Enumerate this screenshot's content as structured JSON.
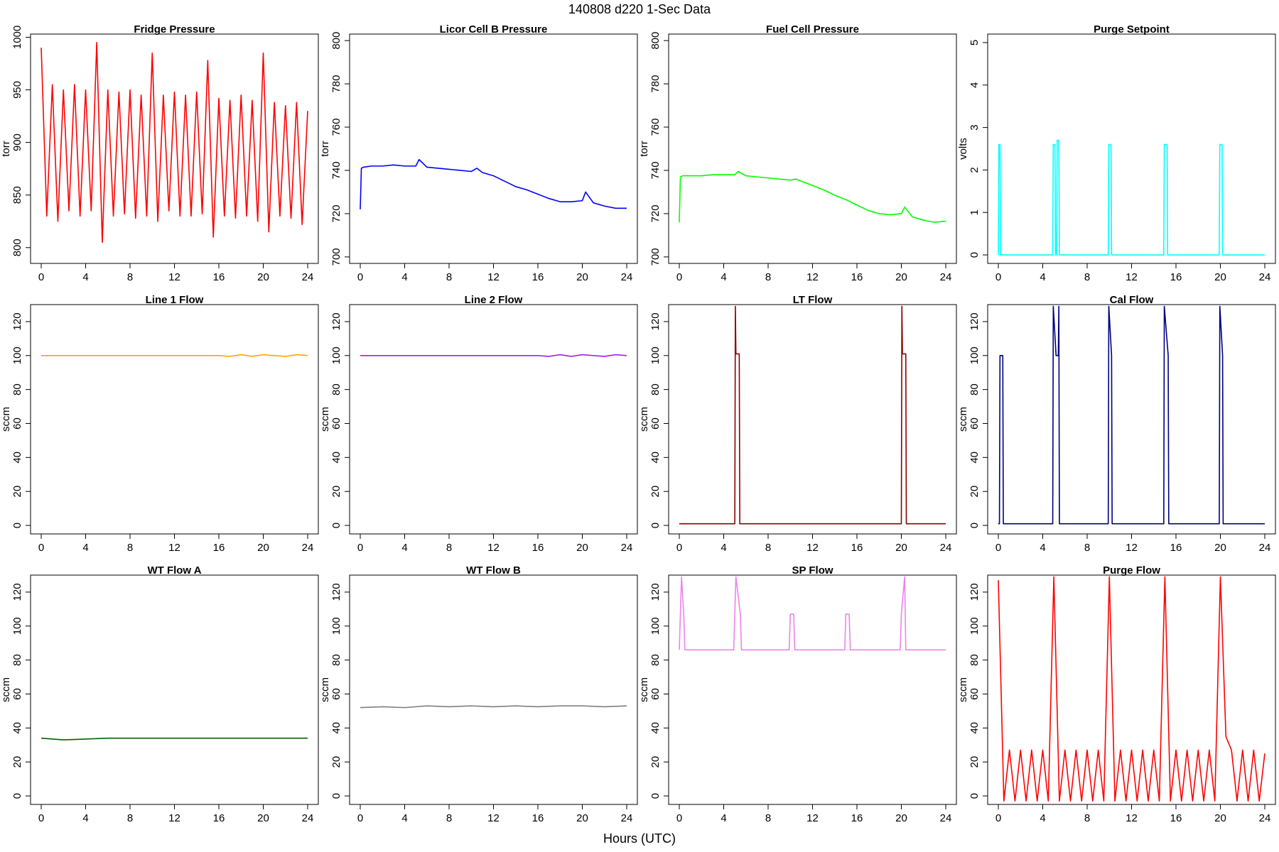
{
  "title": "140808   d220   1-Sec Data",
  "xlabel": "Hours (UTC)",
  "chart_data": [
    {
      "type": "line",
      "title": "Fridge Pressure",
      "ylabel": "torr",
      "color": "#ff0000",
      "x": [
        0,
        0.5,
        1,
        1.5,
        2,
        2.5,
        3,
        3.5,
        4,
        4.5,
        5,
        5.5,
        6,
        6.5,
        7,
        7.5,
        8,
        8.5,
        9,
        9.5,
        10,
        10.5,
        11,
        11.5,
        12,
        12.5,
        13,
        13.5,
        14,
        14.5,
        15,
        15.5,
        16,
        16.5,
        17,
        17.5,
        18,
        18.5,
        19,
        19.5,
        20,
        20.5,
        21,
        21.5,
        22,
        22.5,
        23,
        23.5,
        24
      ],
      "values": [
        990,
        830,
        955,
        825,
        950,
        835,
        955,
        830,
        950,
        835,
        995,
        805,
        950,
        830,
        948,
        832,
        950,
        828,
        945,
        830,
        985,
        825,
        945,
        835,
        948,
        830,
        945,
        830,
        948,
        832,
        978,
        810,
        942,
        830,
        940,
        828,
        945,
        830,
        940,
        825,
        985,
        815,
        938,
        830,
        935,
        828,
        938,
        822,
        930
      ],
      "xlim": [
        -0.96,
        24.96
      ],
      "xticks": [
        0,
        4,
        8,
        12,
        16,
        20,
        24
      ],
      "ylim": [
        785,
        1003
      ],
      "yticks": [
        800,
        850,
        900,
        950,
        1000
      ]
    },
    {
      "type": "line",
      "title": "Licor Cell B Pressure",
      "ylabel": "torr",
      "color": "#0000ff",
      "x": [
        0,
        0.1,
        0.3,
        1,
        2,
        3,
        4,
        5,
        5.3,
        6,
        7,
        8,
        9,
        10,
        10.5,
        11,
        12,
        13,
        14,
        15,
        16,
        17,
        18,
        19,
        20,
        20.3,
        21,
        22,
        23,
        24
      ],
      "values": [
        722,
        741,
        741.5,
        742,
        742,
        742.5,
        742,
        742,
        745,
        741.5,
        741,
        740.5,
        740,
        739.5,
        741,
        739,
        737.5,
        735,
        732.5,
        731,
        729,
        727,
        725.5,
        725.5,
        726,
        730,
        725,
        723.5,
        722.5,
        722.5
      ],
      "xlim": [
        -0.96,
        24.96
      ],
      "xticks": [
        0,
        4,
        8,
        12,
        16,
        20,
        24
      ],
      "ylim": [
        697,
        803
      ],
      "yticks": [
        700,
        720,
        740,
        760,
        780,
        800
      ]
    },
    {
      "type": "line",
      "title": "Fuel Cell Pressure",
      "ylabel": "torr",
      "color": "#00ff00",
      "x": [
        0,
        0.1,
        0.3,
        1,
        2,
        3,
        4,
        5,
        5.3,
        6,
        7,
        8,
        9,
        10,
        10.5,
        11,
        12,
        13,
        14,
        15,
        16,
        17,
        18,
        19,
        20,
        20.3,
        21,
        22,
        23,
        24
      ],
      "values": [
        716,
        737,
        737.5,
        737.5,
        737.5,
        738,
        738,
        738,
        739.5,
        737.5,
        737,
        736.5,
        736,
        735.5,
        736,
        735,
        733,
        731,
        728.5,
        726.5,
        724,
        721.5,
        720,
        719.5,
        720,
        723,
        718.5,
        717,
        716,
        716.5
      ],
      "xlim": [
        -0.96,
        24.96
      ],
      "xticks": [
        0,
        4,
        8,
        12,
        16,
        20,
        24
      ],
      "ylim": [
        697,
        803
      ],
      "yticks": [
        700,
        720,
        740,
        760,
        780,
        800
      ]
    },
    {
      "type": "line",
      "title": "Purge Setpoint",
      "ylabel": "volts",
      "color": "#00ffff",
      "x": [
        0,
        0.05,
        0.15,
        0.2,
        4.9,
        4.95,
        5.1,
        5.15,
        5.25,
        5.3,
        5.45,
        5.5,
        9.9,
        9.95,
        10.15,
        10.2,
        14.9,
        14.95,
        15.2,
        15.25,
        19.9,
        19.95,
        20.15,
        20.2,
        24
      ],
      "values": [
        0,
        2.6,
        2.6,
        0,
        0,
        2.6,
        2.6,
        0,
        0,
        2.7,
        2.7,
        0,
        0,
        2.6,
        2.6,
        0,
        0,
        2.6,
        2.6,
        0,
        0,
        2.6,
        2.6,
        0,
        0
      ],
      "xlim": [
        -0.96,
        24.96
      ],
      "xticks": [
        0,
        4,
        8,
        12,
        16,
        20,
        24
      ],
      "ylim": [
        -0.2,
        5.2
      ],
      "yticks": [
        0,
        1,
        2,
        3,
        4,
        5
      ]
    },
    {
      "type": "line",
      "title": "Line 1 Flow",
      "ylabel": "sccm",
      "color": "#ffa500",
      "x": [
        0,
        4,
        8,
        12,
        16,
        17,
        18,
        19,
        20,
        21,
        22,
        23,
        24
      ],
      "values": [
        100,
        100,
        100,
        100,
        100,
        99.5,
        100.5,
        99.5,
        100.5,
        100,
        99.5,
        100.5,
        100
      ],
      "xlim": [
        -0.96,
        24.96
      ],
      "xticks": [
        0,
        4,
        8,
        12,
        16,
        20,
        24
      ],
      "ylim": [
        -5,
        130
      ],
      "yticks": [
        0,
        20,
        40,
        60,
        80,
        100,
        120
      ]
    },
    {
      "type": "line",
      "title": "Line 2 Flow",
      "ylabel": "sccm",
      "color": "#a020f0",
      "x": [
        0,
        4,
        8,
        12,
        16,
        17,
        18,
        19,
        20,
        21,
        22,
        23,
        24
      ],
      "values": [
        100,
        100,
        100,
        100,
        100,
        99.5,
        100.5,
        99.5,
        100.5,
        100,
        99.5,
        100.5,
        100
      ],
      "xlim": [
        -0.96,
        24.96
      ],
      "xticks": [
        0,
        4,
        8,
        12,
        16,
        20,
        24
      ],
      "ylim": [
        -5,
        130
      ],
      "yticks": [
        0,
        20,
        40,
        60,
        80,
        100,
        120
      ]
    },
    {
      "type": "line",
      "title": "LT Flow",
      "ylabel": "sccm",
      "color": "#8b0000",
      "x": [
        0,
        5,
        5.05,
        5.1,
        5.4,
        5.45,
        20,
        20.05,
        20.1,
        20.4,
        20.45,
        24
      ],
      "values": [
        1,
        1,
        129,
        101,
        101,
        1,
        1,
        129,
        101,
        101,
        1,
        1
      ],
      "xlim": [
        -0.96,
        24.96
      ],
      "xticks": [
        0,
        4,
        8,
        12,
        16,
        20,
        24
      ],
      "ylim": [
        -5,
        130
      ],
      "yticks": [
        0,
        20,
        40,
        60,
        80,
        100,
        120
      ]
    },
    {
      "type": "line",
      "title": "Cal Flow",
      "ylabel": "sccm",
      "color": "#000080",
      "x": [
        0,
        0.1,
        0.15,
        0.4,
        0.45,
        4.9,
        4.95,
        5.2,
        5.4,
        5.45,
        5.5,
        9.9,
        9.95,
        10.2,
        10.25,
        14.9,
        14.95,
        15.3,
        15.35,
        19.9,
        19.95,
        20.2,
        20.25,
        24
      ],
      "values": [
        1,
        1,
        100,
        100,
        1,
        1,
        129,
        100,
        100,
        129,
        1,
        1,
        129,
        100,
        1,
        1,
        129,
        100,
        1,
        1,
        129,
        100,
        1,
        1
      ],
      "xlim": [
        -0.96,
        24.96
      ],
      "xticks": [
        0,
        4,
        8,
        12,
        16,
        20,
        24
      ],
      "ylim": [
        -5,
        130
      ],
      "yticks": [
        0,
        20,
        40,
        60,
        80,
        100,
        120
      ]
    },
    {
      "type": "line",
      "title": "WT Flow A",
      "ylabel": "sccm",
      "color": "#006400",
      "x": [
        0,
        2,
        4,
        6,
        8,
        10,
        12,
        14,
        16,
        18,
        20,
        22,
        24
      ],
      "values": [
        34,
        33,
        33.5,
        34,
        34,
        34,
        34,
        34,
        34,
        34,
        34,
        34,
        34
      ],
      "xlim": [
        -0.96,
        24.96
      ],
      "xticks": [
        0,
        4,
        8,
        12,
        16,
        20,
        24
      ],
      "ylim": [
        -5,
        130
      ],
      "yticks": [
        0,
        20,
        40,
        60,
        80,
        100,
        120
      ]
    },
    {
      "type": "line",
      "title": "WT Flow B",
      "ylabel": "sccm",
      "color": "#808080",
      "x": [
        0,
        2,
        4,
        6,
        8,
        10,
        12,
        14,
        16,
        18,
        20,
        22,
        24
      ],
      "values": [
        52,
        52.5,
        52,
        53,
        52.5,
        53,
        52.5,
        53,
        52.5,
        53,
        53,
        52.5,
        53
      ],
      "xlim": [
        -0.96,
        24.96
      ],
      "xticks": [
        0,
        4,
        8,
        12,
        16,
        20,
        24
      ],
      "ylim": [
        -5,
        130
      ],
      "yticks": [
        0,
        20,
        40,
        60,
        80,
        100,
        120
      ]
    },
    {
      "type": "line",
      "title": "SP Flow",
      "ylabel": "sccm",
      "color": "#ee82ee",
      "x": [
        0,
        0.1,
        0.2,
        0.4,
        0.5,
        4.9,
        5,
        5.1,
        5.5,
        5.6,
        9.9,
        10,
        10.3,
        10.4,
        14.9,
        15,
        15.3,
        15.4,
        19.9,
        20,
        20.3,
        20.4,
        22,
        24
      ],
      "values": [
        86,
        107,
        129,
        107,
        86,
        86,
        107,
        129,
        107,
        86,
        86,
        107,
        107,
        86,
        86,
        107,
        107,
        86,
        86,
        107,
        129,
        86,
        86,
        86
      ],
      "xlim": [
        -0.96,
        24.96
      ],
      "xticks": [
        0,
        4,
        8,
        12,
        16,
        20,
        24
      ],
      "ylim": [
        -5,
        130
      ],
      "yticks": [
        0,
        20,
        40,
        60,
        80,
        100,
        120
      ]
    },
    {
      "type": "line",
      "title": "Purge Flow",
      "ylabel": "sccm",
      "color": "#ff0000",
      "x": [
        0,
        0.5,
        1,
        1.5,
        2,
        2.5,
        3,
        3.5,
        4,
        4.5,
        5,
        5.5,
        6,
        6.5,
        7,
        7.5,
        8,
        8.5,
        9,
        9.5,
        10,
        10.5,
        11,
        11.5,
        12,
        12.5,
        13,
        13.5,
        14,
        14.5,
        15,
        15.5,
        16,
        16.5,
        17,
        17.5,
        18,
        18.5,
        19,
        19.5,
        20,
        20.5,
        21,
        21.5,
        22,
        22.5,
        23,
        23.5,
        24
      ],
      "values": [
        127,
        -3,
        27,
        -3,
        27,
        -3,
        27,
        -3,
        27,
        -3,
        129,
        -3,
        27,
        -3,
        27,
        -3,
        27,
        -3,
        27,
        -3,
        129,
        -3,
        27,
        -3,
        27,
        -3,
        27,
        -3,
        27,
        -3,
        129,
        -3,
        27,
        -3,
        27,
        -3,
        27,
        -3,
        27,
        -3,
        129,
        35,
        27,
        -3,
        27,
        -3,
        27,
        -3,
        25
      ],
      "xlim": [
        -0.96,
        24.96
      ],
      "xticks": [
        0,
        4,
        8,
        12,
        16,
        20,
        24
      ],
      "ylim": [
        -5,
        130
      ],
      "yticks": [
        0,
        20,
        40,
        60,
        80,
        100,
        120
      ]
    }
  ]
}
